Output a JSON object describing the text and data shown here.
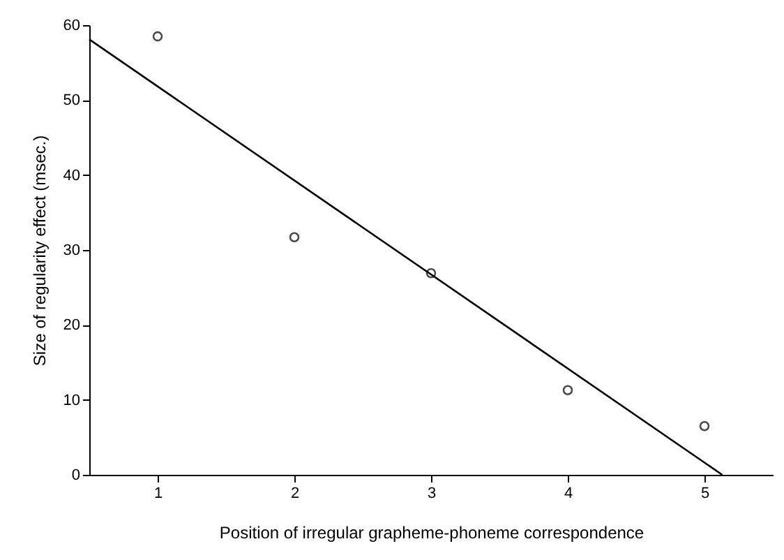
{
  "chart_data": {
    "type": "scatter",
    "xlabel": "Position of irregular grapheme-phoneme correspondence",
    "ylabel": "Size of regularity effect (msec.)",
    "x": [
      1,
      2,
      3,
      4,
      5
    ],
    "series": [
      {
        "type": "scatter",
        "color": "#000000",
        "marker": "circle",
        "values": [
          58.5,
          31.7,
          26.9,
          11.3,
          6.5
        ]
      },
      {
        "type": "line",
        "color": "#000000",
        "marker": "none",
        "x": [
          0.5,
          5.13
        ],
        "values": [
          58.1,
          0
        ]
      }
    ],
    "xlim": [
      0.5,
      5.5
    ],
    "xticks": [
      1,
      2,
      3,
      4,
      5
    ],
    "ylim": [
      0,
      60
    ],
    "yticks": [
      0,
      10,
      20,
      30,
      40,
      50,
      60
    ],
    "grid": false,
    "line_style": "solid"
  }
}
